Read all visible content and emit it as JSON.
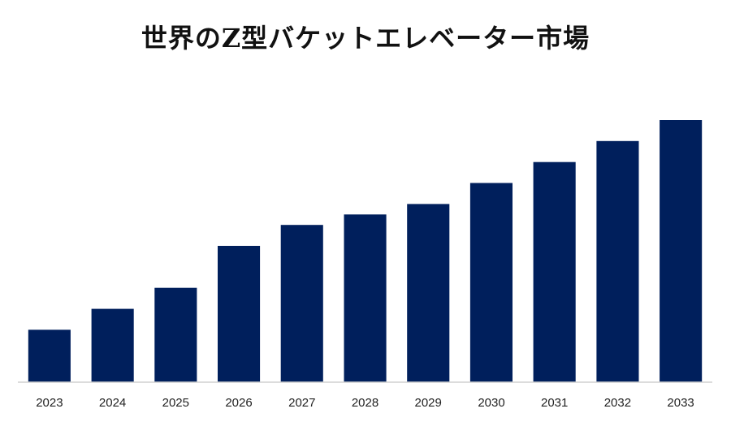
{
  "chart_data": {
    "type": "bar",
    "title": "世界のZ型バケットエレベーター市場",
    "xlabel": "",
    "ylabel": "",
    "categories": [
      "2023",
      "2024",
      "2025",
      "2026",
      "2027",
      "2028",
      "2029",
      "2030",
      "2031",
      "2032",
      "2033"
    ],
    "series": [
      {
        "values": [
          2.5,
          3.5,
          4.5,
          6.5,
          7.5,
          8.0,
          8.5,
          9.5,
          10.5,
          11.5,
          12.5
        ]
      }
    ],
    "ylim": [
      0,
      12.5
    ],
    "grid": false,
    "legend": "none",
    "colors": {
      "bar": "#001f5c",
      "axis_line": "#d0d0d0",
      "title": "#111111",
      "tick_label": "#222222"
    }
  }
}
